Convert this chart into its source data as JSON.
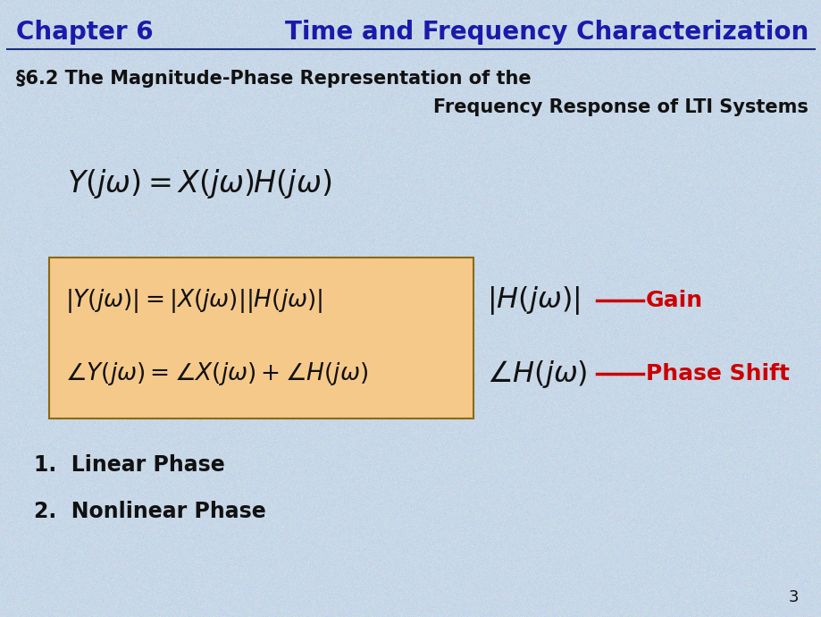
{
  "bg_color": "#c8d8e8",
  "title_left": "Chapter 6",
  "title_right": "Time and Frequency Characterization",
  "title_color": "#1a1aaa",
  "header_line_color": "#1a3080",
  "section_title_line1": "§6.2 The Magnitude-Phase Representation of the",
  "section_title_line2": "Frequency Response of LTI Systems",
  "section_title_color": "#111111",
  "eq_box_color": "#f5c98a",
  "eq_right_line1_label": "Gain",
  "eq_right_line2_label": "Phase Shift",
  "label_color": "#cc0000",
  "item1": "1.  Linear Phase",
  "item2": "2.  Nonlinear Phase",
  "item_color": "#111111",
  "page_number": "3"
}
